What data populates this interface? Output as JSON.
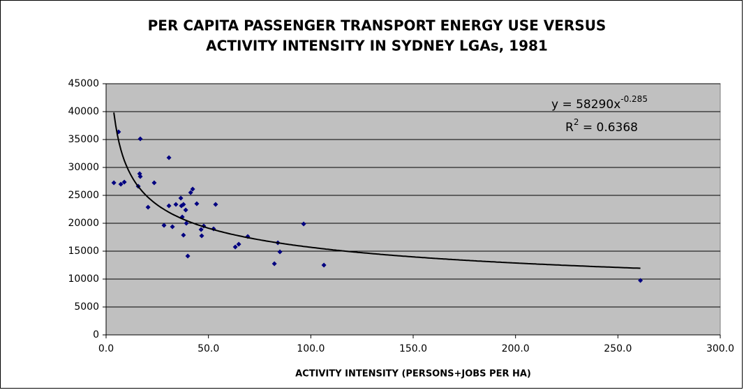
{
  "chart_data": {
    "type": "scatter",
    "title": [
      "PER CAPITA PASSENGER TRANSPORT ENERGY USE VERSUS",
      "ACTIVITY INTENSITY IN SYDNEY LGAs, 1981"
    ],
    "xlabel": "ACTIVITY INTENSITY (PERSONS+JOBS PER HA)",
    "color": "#000080",
    "x": [
      3.8,
      6.1,
      7.2,
      8.9,
      15.7,
      16.7,
      16.4,
      16.7,
      20.5,
      23.5,
      28.3,
      30.7,
      30.7,
      32.4,
      34.1,
      36.5,
      36.8,
      37.8,
      37.2,
      37.8,
      38.9,
      39.2,
      39.9,
      41.3,
      42.3,
      44.3,
      46.4,
      46.7,
      47.7,
      52.5,
      53.5,
      69.2,
      63.1,
      64.8,
      82.2,
      83.9,
      84.9,
      96.5,
      106.4,
      261.0
    ],
    "values": [
      27250,
      36375,
      27000,
      27375,
      26625,
      35125,
      28875,
      28375,
      22875,
      27250,
      19625,
      31750,
      23125,
      19375,
      23375,
      24500,
      23125,
      23375,
      21125,
      17875,
      22375,
      20000,
      14125,
      25500,
      26125,
      23500,
      18875,
      17750,
      19500,
      19000,
      23375,
      17625,
      15750,
      16250,
      12750,
      16500,
      14875,
      19875,
      12500,
      9750
    ],
    "xlim": [
      0,
      300
    ],
    "xticks": [
      {
        "value": 0,
        "label": "0.0"
      },
      {
        "value": 50,
        "label": "50.0"
      },
      {
        "value": 100,
        "label": "100.0"
      },
      {
        "value": 150,
        "label": "150.0"
      },
      {
        "value": 200,
        "label": "200.0"
      },
      {
        "value": 250,
        "label": "250.0"
      },
      {
        "value": 300,
        "label": "300.0"
      }
    ],
    "ylim": [
      0,
      45000
    ],
    "yticks": [
      0,
      5000,
      10000,
      15000,
      20000,
      25000,
      30000,
      35000,
      40000,
      45000
    ],
    "grid": true,
    "trendline": {
      "type": "power",
      "coefficient": 58290,
      "exponent": -0.285,
      "color": "#000000",
      "equation": [
        "y = 58290x",
        "-0.285"
      ],
      "r_squared_label": [
        "R",
        "2",
        " = 0.6368"
      ]
    }
  }
}
